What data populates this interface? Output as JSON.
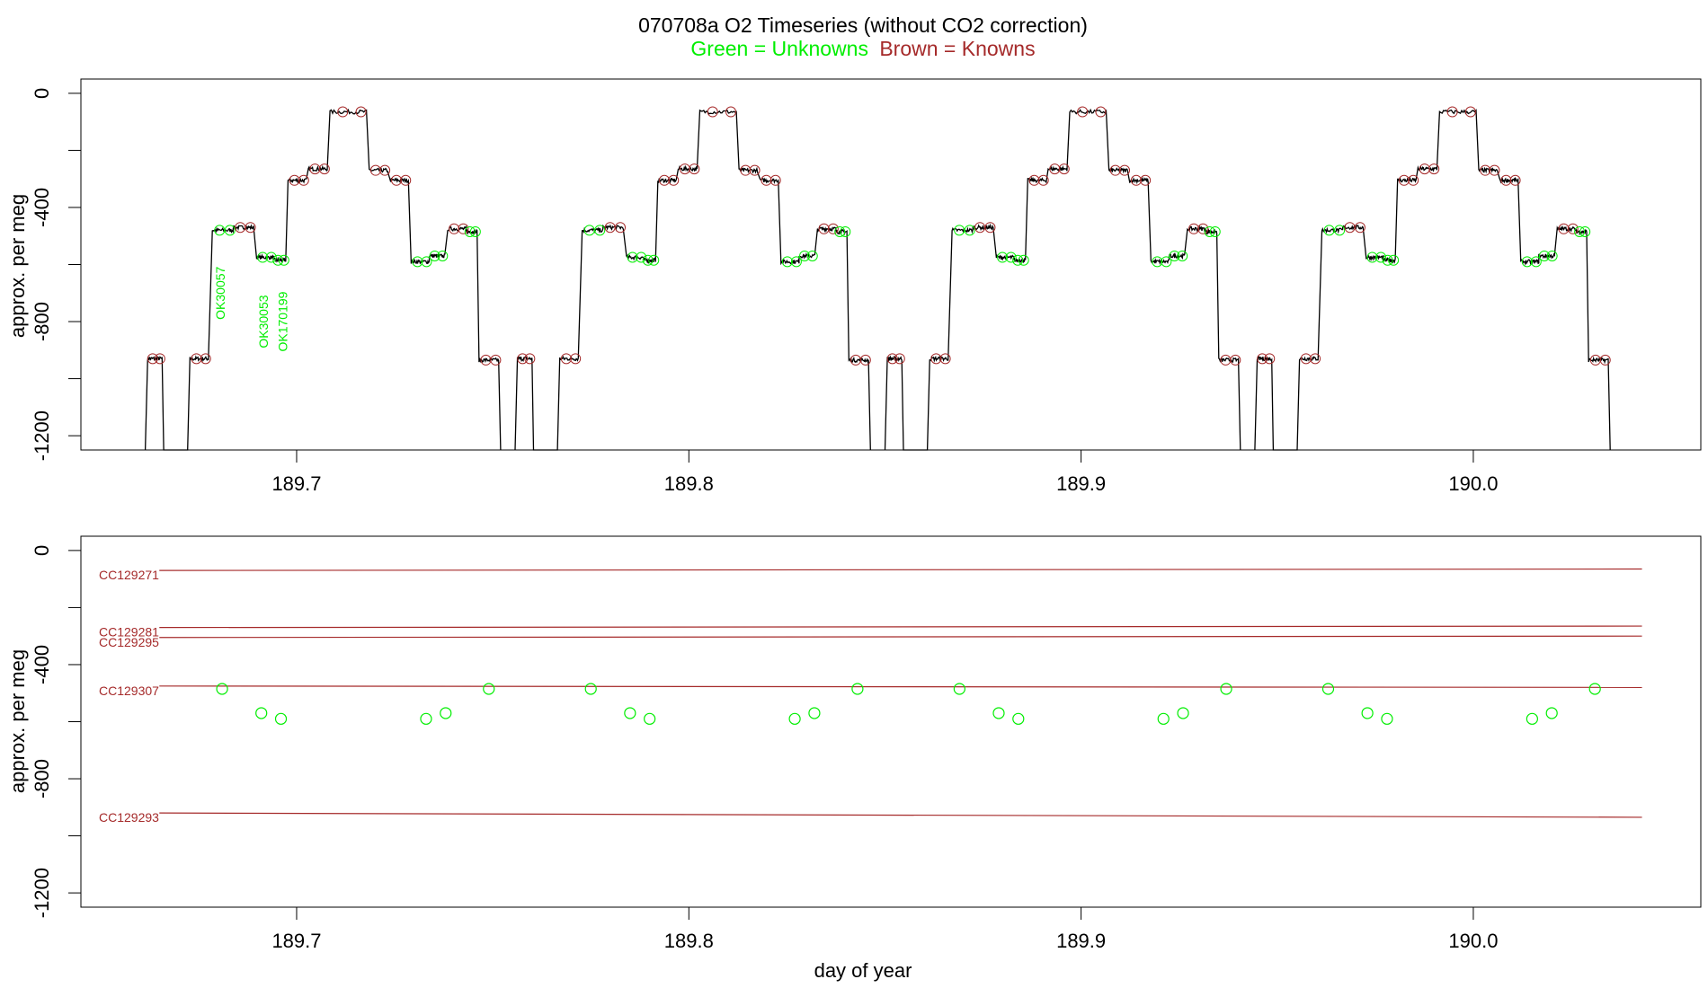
{
  "title": "070708a   O2 Timeseries (without CO2 correction)",
  "legend": {
    "unknowns_label": "Green = Unknowns",
    "knowns_label": "Brown = Knowns",
    "unknowns_color": "#00ee00",
    "knowns_color": "#a52a2a"
  },
  "chart_data": [
    {
      "type": "line",
      "panel": "top",
      "ylabel": "approx. per meg",
      "xlabel": "",
      "xlim": [
        189.645,
        190.058
      ],
      "ylim": [
        -1250,
        50
      ],
      "x_ticks": [
        "189.7",
        "189.8",
        "189.9",
        "190.0"
      ],
      "y_ticks": [
        "0",
        "-400",
        "-800",
        "-1200"
      ],
      "grid": false,
      "cycle": {
        "start": 189.662,
        "period": 0.0943,
        "count": 4,
        "segments": [
          {
            "x0": 0.0,
            "x1": 0.0037,
            "y": -930,
            "kind": "known"
          },
          {
            "x0": 0.0108,
            "x1": 0.0155,
            "y": -930,
            "kind": "known"
          },
          {
            "x0": 0.0165,
            "x1": 0.0218,
            "y": -480,
            "kind": "unknown"
          },
          {
            "x0": 0.0218,
            "x1": 0.027,
            "y": -470,
            "kind": "known"
          },
          {
            "x0": 0.0278,
            "x1": 0.0322,
            "y": -575,
            "kind": "unknown"
          },
          {
            "x0": 0.0322,
            "x1": 0.0352,
            "y": -585,
            "kind": "unknown"
          },
          {
            "x0": 0.0358,
            "x1": 0.0405,
            "y": -305,
            "kind": "known"
          },
          {
            "x0": 0.041,
            "x1": 0.0458,
            "y": -265,
            "kind": "known"
          },
          {
            "x0": 0.0465,
            "x1": 0.0558,
            "y": -65,
            "kind": "known"
          },
          {
            "x0": 0.0565,
            "x1": 0.0612,
            "y": -270,
            "kind": "known"
          },
          {
            "x0": 0.0618,
            "x1": 0.0665,
            "y": -305,
            "kind": "known"
          },
          {
            "x0": 0.0672,
            "x1": 0.0718,
            "y": -590,
            "kind": "unknown"
          },
          {
            "x0": 0.0718,
            "x1": 0.0758,
            "y": -570,
            "kind": "unknown"
          },
          {
            "x0": 0.0765,
            "x1": 0.0812,
            "y": -475,
            "kind": "known"
          },
          {
            "x0": 0.0812,
            "x1": 0.084,
            "y": -485,
            "kind": "unknown"
          },
          {
            "x0": 0.0845,
            "x1": 0.0895,
            "y": -935,
            "kind": "known"
          }
        ]
      },
      "annotations": [
        {
          "text": "OK30057",
          "x": 189.6805,
          "y": -700
        },
        {
          "text": "OK30053",
          "x": 189.6915,
          "y": -800
        },
        {
          "text": "OK170199",
          "x": 189.6965,
          "y": -800
        }
      ]
    },
    {
      "type": "scatter",
      "panel": "bottom",
      "ylabel": "approx. per meg",
      "xlabel": "day of year",
      "xlim": [
        189.645,
        190.058
      ],
      "ylim": [
        -1250,
        50
      ],
      "x_ticks": [
        "189.7",
        "189.8",
        "189.9",
        "190.0"
      ],
      "y_ticks": [
        "0",
        "-400",
        "-800",
        "-1200"
      ],
      "grid": false,
      "x_range": [
        189.665,
        190.043
      ],
      "knowns": [
        {
          "name": "CC129271",
          "y_start": -70,
          "y_end": -65
        },
        {
          "name": "CC129281",
          "y_start": -270,
          "y_end": -265
        },
        {
          "name": "CC129295",
          "y_start": -305,
          "y_end": -300
        },
        {
          "name": "CC129307",
          "y_start": -475,
          "y_end": -480
        },
        {
          "name": "CC129293",
          "y_start": -920,
          "y_end": -935
        }
      ],
      "unknown_points": [
        {
          "x": 189.681,
          "y": -485
        },
        {
          "x": 189.691,
          "y": -570
        },
        {
          "x": 189.696,
          "y": -590
        },
        {
          "x": 189.733,
          "y": -590
        },
        {
          "x": 189.738,
          "y": -570
        },
        {
          "x": 189.749,
          "y": -485
        },
        {
          "x": 189.775,
          "y": -485
        },
        {
          "x": 189.785,
          "y": -570
        },
        {
          "x": 189.79,
          "y": -590
        },
        {
          "x": 189.827,
          "y": -590
        },
        {
          "x": 189.832,
          "y": -570
        },
        {
          "x": 189.843,
          "y": -485
        },
        {
          "x": 189.869,
          "y": -485
        },
        {
          "x": 189.879,
          "y": -570
        },
        {
          "x": 189.884,
          "y": -590
        },
        {
          "x": 189.921,
          "y": -590
        },
        {
          "x": 189.926,
          "y": -570
        },
        {
          "x": 189.937,
          "y": -485
        },
        {
          "x": 189.963,
          "y": -485
        },
        {
          "x": 189.973,
          "y": -570
        },
        {
          "x": 189.978,
          "y": -590
        },
        {
          "x": 190.015,
          "y": -590
        },
        {
          "x": 190.02,
          "y": -570
        },
        {
          "x": 190.031,
          "y": -485
        }
      ]
    }
  ]
}
